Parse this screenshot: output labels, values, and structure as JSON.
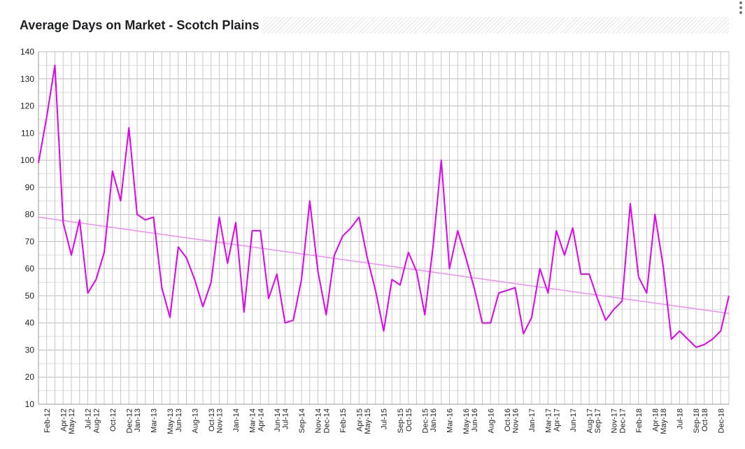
{
  "colors": {
    "series": "#e000f0",
    "trend": "#f08cf5",
    "grid": "#c8c8c8",
    "axis": "#999999"
  },
  "icons": {
    "menu": "more-vert-icon"
  },
  "chart_data": {
    "type": "line",
    "title": "Average Days on Market - Scotch Plains",
    "xlabel": "",
    "ylabel": "",
    "ylim": [
      10,
      140
    ],
    "yticks": [
      10,
      20,
      30,
      40,
      50,
      60,
      70,
      80,
      90,
      100,
      110,
      120,
      130,
      140
    ],
    "x_start": "Jan-12",
    "xlim": [
      "Jan-12",
      "Dec-18"
    ],
    "xtick_labels": [
      "Feb-12",
      "Apr-12",
      "May-12",
      "Jul-12",
      "Aug-12",
      "Oct-12",
      "Dec-12",
      "Jan-13",
      "Mar-13",
      "May-13",
      "Jun-13",
      "Aug-13",
      "Oct-13",
      "Nov-13",
      "Jan-14",
      "Mar-14",
      "Apr-14",
      "Jun-14",
      "Jul-14",
      "Sep-14",
      "Nov-14",
      "Dec-14",
      "Feb-15",
      "Apr-15",
      "May-15",
      "Jul-15",
      "Sep-15",
      "Oct-15",
      "Dec-15",
      "Jan-16",
      "Mar-16",
      "May-16",
      "Jun-16",
      "Aug-16",
      "Oct-16",
      "Nov-16",
      "Jan-17",
      "Mar-17",
      "Apr-17",
      "Jun-17",
      "Aug-17",
      "Sep-17",
      "Nov-17",
      "Dec-17",
      "Feb-18",
      "Apr-18",
      "May-18",
      "Jul-18",
      "Sep-18",
      "Oct-18",
      "Dec-18"
    ],
    "grid": true,
    "legend": "none",
    "series": [
      {
        "values": [
          99,
          116,
          135,
          77,
          65,
          78,
          51,
          56,
          66,
          96,
          85,
          112,
          80,
          78,
          79,
          53,
          42,
          68,
          64,
          56,
          46,
          55,
          79,
          62,
          77,
          44,
          74,
          74,
          49,
          58,
          40,
          41,
          56,
          85,
          59,
          43,
          65,
          72,
          75,
          79,
          64,
          52,
          37,
          56,
          54,
          66,
          59,
          43,
          68,
          100,
          60,
          74,
          64,
          53,
          40,
          40,
          51,
          52,
          53,
          36,
          42,
          60,
          51,
          74,
          65,
          75,
          58,
          58,
          49,
          41,
          45,
          48,
          84,
          57,
          51,
          80,
          61,
          34,
          37,
          34,
          31,
          32,
          34,
          37,
          50
        ]
      }
    ],
    "trendline": {
      "values": [
        79,
        43.5
      ]
    }
  }
}
